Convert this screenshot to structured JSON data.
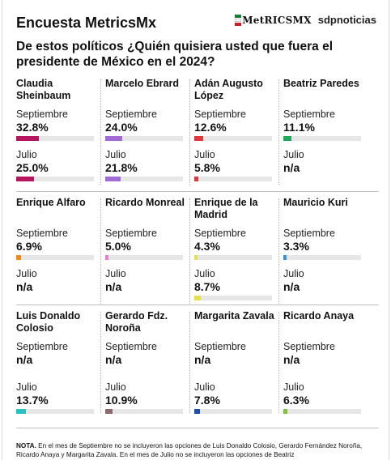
{
  "header": {
    "title": "Encuesta MetricsMx",
    "logo_metrics": "MetRICSMX",
    "logo_sd": "sdpnoticias"
  },
  "question": "De estos políticos ¿Quién quisiera usted que fuera el presidente de México en el 2024?",
  "chart_data": {
    "type": "bar",
    "title": "De estos políticos ¿Quién quisiera usted que fuera el presidente de México en el 2024?",
    "unit": "%",
    "ylim": [
      0,
      100
    ],
    "series_labels": [
      "Septiembre",
      "Julio"
    ],
    "candidates": [
      {
        "name": "Claudia Sheinbaum",
        "color": "#b5155f",
        "septiembre": "32.8%",
        "septiembre_value": 32.8,
        "julio": "25.0%",
        "julio_value": 25.0
      },
      {
        "name": "Marcelo Ebrard",
        "color": "#a26ad4",
        "septiembre": "24.0%",
        "septiembre_value": 24.0,
        "julio": "21.8%",
        "julio_value": 21.8
      },
      {
        "name": "Adán Augusto López",
        "color": "#e0353a",
        "septiembre": "12.6%",
        "septiembre_value": 12.6,
        "julio": "5.8%",
        "julio_value": 5.8
      },
      {
        "name": "Beatriz Paredes",
        "color": "#1fa85a",
        "septiembre": "11.1%",
        "septiembre_value": 11.1,
        "julio": "n/a",
        "julio_value": null
      },
      {
        "name": "Enrique Alfaro",
        "color": "#f28a1a",
        "septiembre": "6.9%",
        "septiembre_value": 6.9,
        "julio": "n/a",
        "julio_value": null
      },
      {
        "name": "Ricardo Monreal",
        "color": "#e87ecf",
        "septiembre": "5.0%",
        "septiembre_value": 5.0,
        "julio": "n/a",
        "julio_value": null
      },
      {
        "name": "Enrique de la Madrid",
        "color": "#e6e04a",
        "septiembre": "4.3%",
        "septiembre_value": 4.3,
        "julio": "8.7%",
        "julio_value": 8.7
      },
      {
        "name": "Mauricio Kuri",
        "color": "#3b8fd6",
        "septiembre": "3.3%",
        "septiembre_value": 3.3,
        "julio": "n/a",
        "julio_value": null
      },
      {
        "name": "Luis Donaldo Colosio",
        "color": "#26c4c0",
        "septiembre": "n/a",
        "septiembre_value": null,
        "julio": "13.7%",
        "julio_value": 13.7
      },
      {
        "name": "Gerardo Fdz. Noroña",
        "color": "#8a6a6a",
        "septiembre": "n/a",
        "septiembre_value": null,
        "julio": "10.9%",
        "julio_value": 10.9
      },
      {
        "name": "Margarita Zavala",
        "color": "#1d4fb0",
        "septiembre": "n/a",
        "septiembre_value": null,
        "julio": "7.8%",
        "julio_value": 7.8
      },
      {
        "name": "Ricardo Anaya",
        "color": "#7cc53a",
        "septiembre": "n/a",
        "septiembre_value": null,
        "julio": "6.3%",
        "julio_value": 6.3
      }
    ]
  },
  "note": {
    "label": "NOTA.",
    "text": " En el mes de Septiembre no se incluyeron las opciones de Luis Donaldo Colosio, Gerardo Fernández Noroña, Ricardo Anaya y Margarita Zavala. En el mes de Julio no se incluyeron las opciones de Beatriz"
  }
}
